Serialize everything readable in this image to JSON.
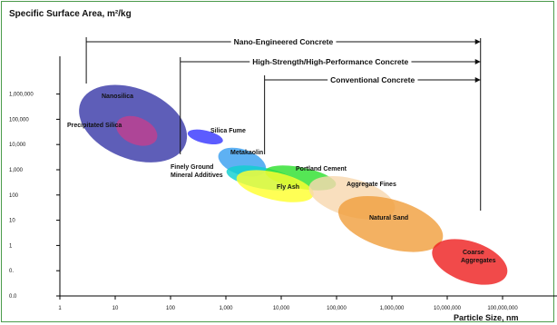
{
  "chart_data": {
    "type": "scatter",
    "title": "Specific Surface Area, m²/kg",
    "xlabel": "Particle Size, nm",
    "x_scale": "log",
    "y_scale": "log",
    "x_ticks": [
      {
        "value": 1,
        "label": "1"
      },
      {
        "value": 10,
        "label": "10"
      },
      {
        "value": 100,
        "label": "100"
      },
      {
        "value": 1000,
        "label": "1,000"
      },
      {
        "value": 10000,
        "label": "10,000"
      },
      {
        "value": 100000,
        "label": "100,000"
      },
      {
        "value": 1000000,
        "label": "1,000,000"
      },
      {
        "value": 10000000,
        "label": "10,000,000"
      },
      {
        "value": 100000000,
        "label": "100,000,000"
      }
    ],
    "y_ticks": [
      {
        "value": 0.01,
        "label": "0.0"
      },
      {
        "value": 0.1,
        "label": "0."
      },
      {
        "value": 1,
        "label": "1"
      },
      {
        "value": 10,
        "label": "10"
      },
      {
        "value": 100,
        "label": "100"
      },
      {
        "value": 1000,
        "label": "1,000"
      },
      {
        "value": 10000,
        "label": "10,000"
      },
      {
        "value": 100000,
        "label": "100,000"
      },
      {
        "value": 1000000,
        "label": "1,000,000"
      }
    ],
    "ranges": [
      {
        "label": "Nano-Engineered Concrete",
        "x_from": 3,
        "x_to": 40000000
      },
      {
        "label": "High-Strength/High-Performance Concrete",
        "x_from": 150,
        "x_to": 40000000
      },
      {
        "label": "Conventional Concrete",
        "x_from": 5000,
        "x_to": 40000000
      }
    ],
    "materials": [
      {
        "name": "Nanosilica",
        "x_min": 2,
        "x_max": 220,
        "y_min": 1500,
        "y_max": 3000000,
        "color": "#3a3aa8"
      },
      {
        "name": "Precipitated Silica",
        "x_min": 10,
        "x_max": 60,
        "y_min": 8000,
        "y_max": 150000,
        "color": "#c04090"
      },
      {
        "name": "Silica Fume",
        "x_min": 200,
        "x_max": 900,
        "y_min": 10000,
        "y_max": 40000,
        "color": "#3838ff"
      },
      {
        "name": "Metakaolin",
        "x_min": 700,
        "x_max": 5500,
        "y_min": 500,
        "y_max": 8000,
        "color": "#3aa0f0"
      },
      {
        "name": "Finely Ground Mineral Additives",
        "x_min": 1000,
        "x_max": 20000,
        "y_min": 150,
        "y_max": 1500,
        "color": "#10d0d0"
      },
      {
        "name": "Portland Cement",
        "x_min": 5000,
        "x_max": 100000,
        "y_min": 150,
        "y_max": 1500,
        "color": "#30e030"
      },
      {
        "name": "Fly Ash",
        "x_min": 1500,
        "x_max": 40000,
        "y_min": 50,
        "y_max": 1000,
        "color": "#ffff30"
      },
      {
        "name": "Aggregate Fines",
        "x_min": 30000,
        "x_max": 1200000,
        "y_min": 10,
        "y_max": 600,
        "color": "#f8d8b0"
      },
      {
        "name": "Natural Sand",
        "x_min": 100000,
        "x_max": 9000000,
        "y_min": 0.5,
        "y_max": 100,
        "color": "#f0a040"
      },
      {
        "name": "Coarse Aggregates",
        "x_min": 5000000,
        "x_max": 130000000,
        "y_min": 0.025,
        "y_max": 2,
        "color": "#ee2222"
      }
    ]
  }
}
